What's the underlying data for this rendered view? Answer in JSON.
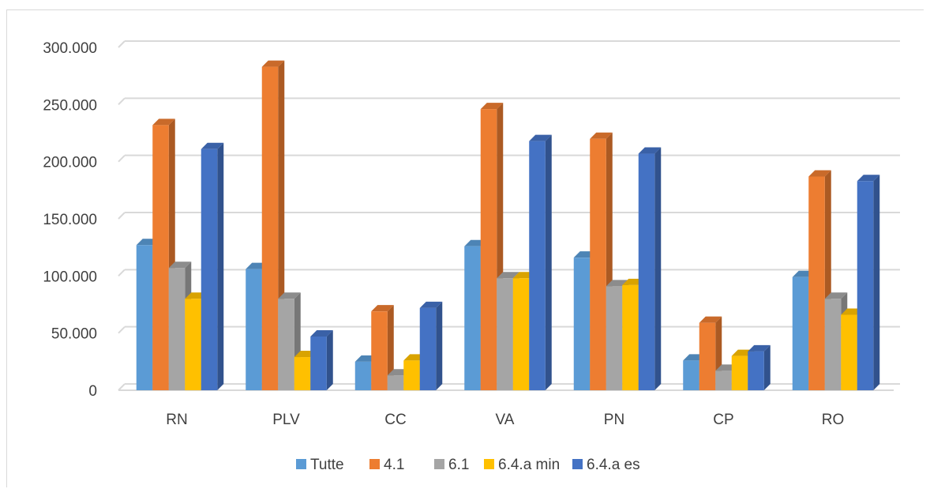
{
  "chart_data": {
    "type": "bar",
    "title": "",
    "xlabel": "",
    "ylabel": "",
    "ylim": [
      0,
      300000
    ],
    "yticks": [
      0,
      50000,
      100000,
      150000,
      200000,
      250000,
      300000
    ],
    "ytick_labels": [
      "0",
      "50.000",
      "100.000",
      "150.000",
      "200.000",
      "250.000",
      "300.000"
    ],
    "grid": true,
    "legend_position": "bottom",
    "style": "3d-clustered-columns",
    "categories": [
      "RN",
      "PLV",
      "CC",
      "VA",
      "PN",
      "CP",
      "RO"
    ],
    "series": [
      {
        "name": "Tutte",
        "color": "#5b9bd5",
        "values": [
          127000,
          106000,
          25000,
          126000,
          116000,
          26000,
          99000
        ]
      },
      {
        "name": "4.1",
        "color": "#ed7d31",
        "values": [
          232000,
          283000,
          69000,
          246000,
          220000,
          59000,
          187000
        ]
      },
      {
        "name": "6.1",
        "color": "#a5a5a5",
        "values": [
          107000,
          80000,
          13000,
          98000,
          91000,
          17000,
          80000
        ]
      },
      {
        "name": "6.4.a min",
        "color": "#ffc000",
        "values": [
          80000,
          29000,
          26000,
          98000,
          92000,
          30000,
          66000
        ]
      },
      {
        "name": "6.4.a es",
        "color": "#4472c4",
        "values": [
          211000,
          47000,
          72000,
          218000,
          207000,
          34000,
          183000
        ]
      }
    ]
  }
}
